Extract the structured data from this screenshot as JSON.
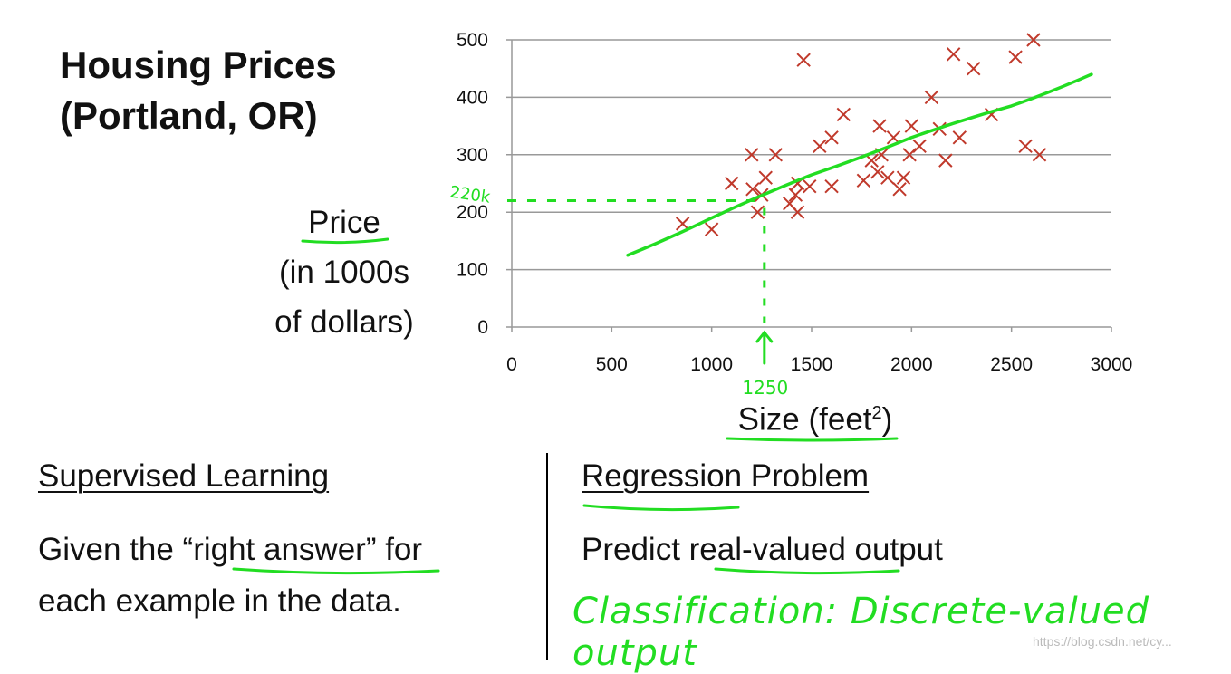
{
  "title_line1": "Housing Prices",
  "title_line2": "(Portland, OR)",
  "ylabel_line1": "Price",
  "ylabel_line2": "(in 1000s",
  "ylabel_line3": "of dollars)",
  "xlabel": "Size (feet",
  "xlabel_sup": "2",
  "xlabel_close": ")",
  "chart_data": {
    "type": "scatter",
    "xlim": [
      0,
      3000
    ],
    "ylim": [
      0,
      500
    ],
    "x_ticks": [
      "0",
      "500",
      "1000",
      "1500",
      "2000",
      "2500",
      "3000"
    ],
    "y_ticks": [
      "0",
      "100",
      "200",
      "300",
      "400",
      "500"
    ],
    "grid": "horizontal",
    "marker": "x",
    "marker_color": "#c0392b",
    "points": [
      [
        855,
        180
      ],
      [
        1000,
        170
      ],
      [
        1100,
        250
      ],
      [
        1200,
        300
      ],
      [
        1205,
        240
      ],
      [
        1230,
        200
      ],
      [
        1250,
        230
      ],
      [
        1270,
        260
      ],
      [
        1320,
        300
      ],
      [
        1390,
        215
      ],
      [
        1420,
        230
      ],
      [
        1430,
        250
      ],
      [
        1430,
        200
      ],
      [
        1460,
        465
      ],
      [
        1490,
        245
      ],
      [
        1540,
        315
      ],
      [
        1600,
        330
      ],
      [
        1600,
        245
      ],
      [
        1660,
        370
      ],
      [
        1760,
        255
      ],
      [
        1800,
        290
      ],
      [
        1830,
        270
      ],
      [
        1840,
        350
      ],
      [
        1850,
        300
      ],
      [
        1880,
        260
      ],
      [
        1910,
        330
      ],
      [
        1940,
        240
      ],
      [
        1960,
        260
      ],
      [
        1990,
        300
      ],
      [
        2000,
        350
      ],
      [
        2040,
        315
      ],
      [
        2100,
        400
      ],
      [
        2140,
        345
      ],
      [
        2170,
        290
      ],
      [
        2210,
        475
      ],
      [
        2240,
        330
      ],
      [
        2310,
        450
      ],
      [
        2400,
        370
      ],
      [
        2520,
        470
      ],
      [
        2570,
        315
      ],
      [
        2610,
        500
      ],
      [
        2640,
        300
      ]
    ],
    "fit_curve": [
      [
        580,
        125
      ],
      [
        1000,
        190
      ],
      [
        1500,
        265
      ],
      [
        2000,
        330
      ],
      [
        2500,
        385
      ],
      [
        2900,
        440
      ]
    ],
    "annotation_x": "1250",
    "annotation_y": "220k",
    "annotation_point": [
      1250,
      220
    ]
  },
  "supervised_heading": "Supervised Learning",
  "supervised_body_line1": "Given the “right answer” for",
  "supervised_body_line2": "each example in the data.",
  "regression_heading": "Regression Problem",
  "regression_body": "Predict real-valued output",
  "classification_note": "Classification: Discrete-valued output",
  "watermark": "https://blog.csdn.net/cy..."
}
